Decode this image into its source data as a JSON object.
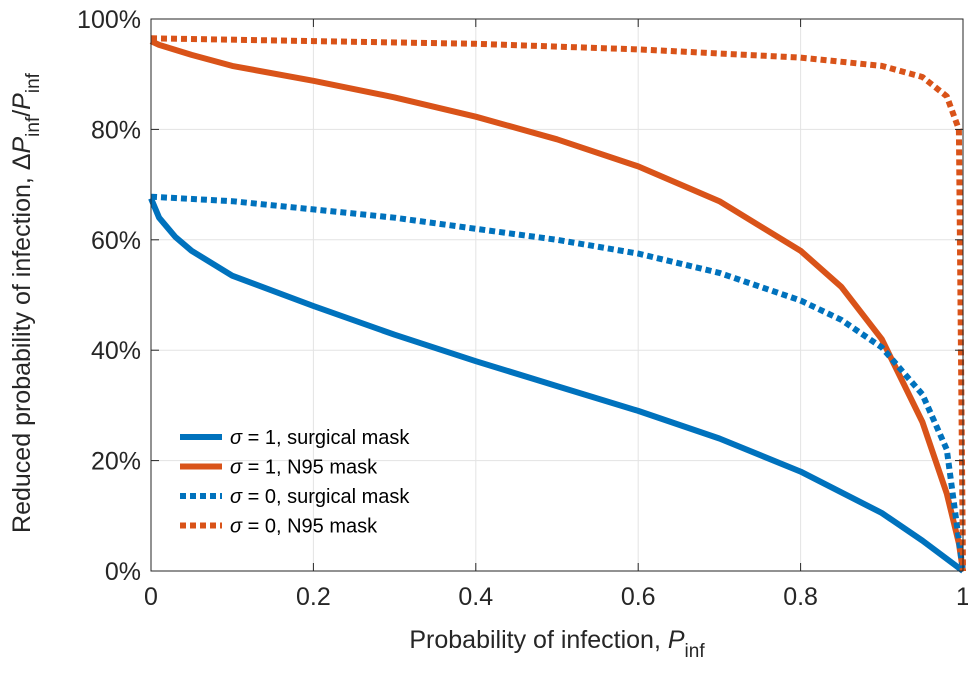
{
  "chart_data": {
    "type": "line",
    "xlabel": {
      "text": "Probability of infection, ",
      "var": "P",
      "sub": "inf"
    },
    "ylabel": {
      "text": "Reduced probability of infection, ",
      "delta": "Δ",
      "var": "P",
      "sub": "inf",
      "slash": "/",
      "var2": "P",
      "sub2": "inf"
    },
    "xlim": [
      0,
      1
    ],
    "ylim": [
      0,
      100
    ],
    "x_ticks": [
      0,
      0.2,
      0.4,
      0.6,
      0.8,
      1
    ],
    "x_tick_labels": [
      "0",
      "0.2",
      "0.4",
      "0.6",
      "0.8",
      "1"
    ],
    "y_ticks": [
      0,
      20,
      40,
      60,
      80,
      100
    ],
    "y_tick_labels": [
      "0%",
      "20%",
      "40%",
      "60%",
      "80%",
      "100%"
    ],
    "grid": true,
    "legend_position": "bottom-left",
    "series": [
      {
        "name": "σ = 1, surgical mask",
        "sigma": "σ",
        "label_rest": " = 1, surgical mask",
        "color": "#0072BD",
        "style": "solid",
        "x": [
          0,
          0.01,
          0.03,
          0.05,
          0.1,
          0.2,
          0.3,
          0.4,
          0.5,
          0.6,
          0.7,
          0.8,
          0.9,
          0.95,
          1.0
        ],
        "y": [
          67.5,
          64,
          60.5,
          58,
          53.5,
          48,
          42.8,
          38,
          33.5,
          29,
          24,
          18,
          10.5,
          5.5,
          0
        ]
      },
      {
        "name": "σ = 1, N95 mask",
        "sigma": "σ",
        "label_rest": " = 1, N95 mask",
        "color": "#D95319",
        "style": "solid",
        "x": [
          0,
          0.01,
          0.05,
          0.1,
          0.2,
          0.3,
          0.4,
          0.5,
          0.6,
          0.7,
          0.8,
          0.85,
          0.9,
          0.95,
          0.98,
          0.995,
          1.0
        ],
        "y": [
          96,
          95.3,
          93.5,
          91.5,
          88.8,
          85.8,
          82.3,
          78.2,
          73.3,
          67,
          58,
          51.5,
          42,
          27,
          14,
          5,
          0
        ]
      },
      {
        "name": "σ = 0, surgical mask",
        "sigma": "σ",
        "label_rest": " = 0, surgical mask",
        "color": "#0072BD",
        "style": "dotted",
        "x": [
          0,
          0.1,
          0.2,
          0.3,
          0.4,
          0.5,
          0.6,
          0.7,
          0.8,
          0.85,
          0.9,
          0.95,
          0.98,
          1.0
        ],
        "y": [
          67.8,
          67,
          65.5,
          64,
          62,
          60,
          57.5,
          54,
          49,
          45.5,
          40.5,
          32,
          22,
          0
        ]
      },
      {
        "name": "σ = 0, N95 mask",
        "sigma": "σ",
        "label_rest": " = 0, N95 mask",
        "color": "#D95319",
        "style": "dotted",
        "x": [
          0,
          0.2,
          0.4,
          0.6,
          0.8,
          0.9,
          0.95,
          0.98,
          0.995,
          1.0
        ],
        "y": [
          96.5,
          96,
          95.5,
          94.5,
          93,
          91.5,
          89.5,
          86,
          80,
          0
        ]
      }
    ]
  }
}
